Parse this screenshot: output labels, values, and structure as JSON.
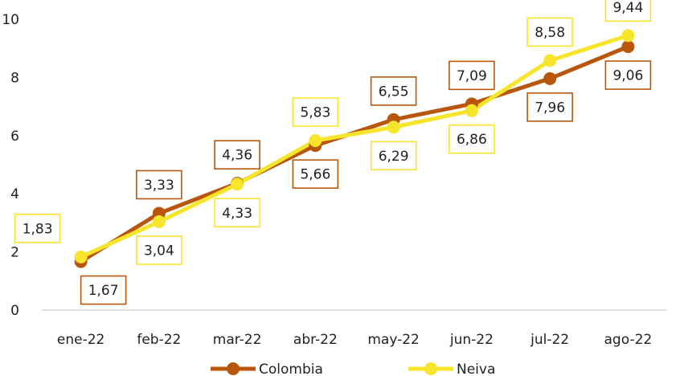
{
  "chart_data": {
    "type": "line",
    "title": "",
    "xlabel": "",
    "ylabel": "",
    "categories": [
      "ene-22",
      "feb-22",
      "mar-22",
      "abr-22",
      "may-22",
      "jun-22",
      "jul-22",
      "ago-22"
    ],
    "ylim": [
      0,
      10
    ],
    "yticks": [
      "0",
      "2",
      "4",
      "6",
      "8",
      "10"
    ],
    "grid": false,
    "legend_position": "bottom",
    "series": [
      {
        "name": "Colombia",
        "color": "#b8560d",
        "values": [
          1.67,
          3.33,
          4.36,
          5.66,
          6.55,
          7.09,
          7.96,
          9.06
        ],
        "labels": [
          "1,67",
          "3,33",
          "4,36",
          "5,66",
          "6,55",
          "7,09",
          "7,96",
          "9,06"
        ]
      },
      {
        "name": "Neiva",
        "color": "#f7e52c",
        "values": [
          1.83,
          3.04,
          4.33,
          5.83,
          6.29,
          6.86,
          8.58,
          9.44
        ],
        "labels": [
          "1,83",
          "3,04",
          "4,33",
          "5,83",
          "6,29",
          "6,86",
          "8,58",
          "9,44"
        ]
      }
    ]
  }
}
